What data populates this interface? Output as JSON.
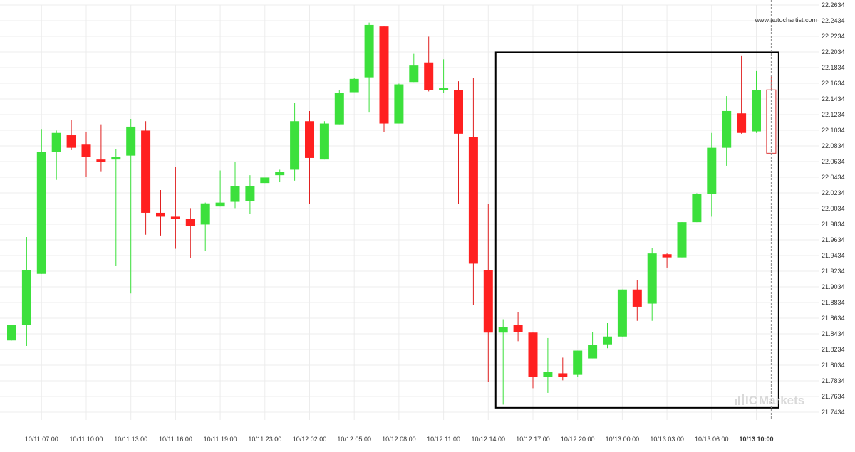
{
  "watermark": "www.autochartist.com",
  "brand": {
    "logo_prefix": "IC",
    "logo_word": "Markets"
  },
  "colors": {
    "up": "#3ce03c",
    "down": "#ff2020",
    "wick_up": "#3ce03c",
    "wick_down": "#e02020",
    "grid": "#ececec",
    "box": "#000000",
    "forming": "#dd3333"
  },
  "chart_data": {
    "type": "candlestick",
    "title": "",
    "xlabel": "",
    "ylabel": "",
    "ylim": [
      21.7334,
      22.2634
    ],
    "grid": true,
    "yticks": [
      "22.2634",
      "22.2434",
      "22.2234",
      "22.2034",
      "22.1834",
      "22.1634",
      "22.1434",
      "22.1234",
      "22.1034",
      "22.0834",
      "22.0634",
      "22.0434",
      "22.0234",
      "22.0034",
      "21.9834",
      "21.9634",
      "21.9434",
      "21.9234",
      "21.9034",
      "21.8834",
      "21.8634",
      "21.8434",
      "21.8234",
      "21.8034",
      "21.7834",
      "21.7634",
      "21.7434"
    ],
    "xticks": [
      {
        "label": "10/11 07:00",
        "index": 2,
        "bold": false
      },
      {
        "label": "10/11 10:00",
        "index": 5,
        "bold": false
      },
      {
        "label": "10/11 13:00",
        "index": 8,
        "bold": false
      },
      {
        "label": "10/11 16:00",
        "index": 11,
        "bold": false
      },
      {
        "label": "10/11 19:00",
        "index": 14,
        "bold": false
      },
      {
        "label": "10/11 23:00",
        "index": 17,
        "bold": false
      },
      {
        "label": "10/12 02:00",
        "index": 20,
        "bold": false
      },
      {
        "label": "10/12 05:00",
        "index": 23,
        "bold": false
      },
      {
        "label": "10/12 08:00",
        "index": 26,
        "bold": false
      },
      {
        "label": "10/12 11:00",
        "index": 29,
        "bold": false
      },
      {
        "label": "10/12 14:00",
        "index": 32,
        "bold": false
      },
      {
        "label": "10/12 17:00",
        "index": 35,
        "bold": false
      },
      {
        "label": "10/12 20:00",
        "index": 38,
        "bold": false
      },
      {
        "label": "10/13 00:00",
        "index": 41,
        "bold": false
      },
      {
        "label": "10/13 03:00",
        "index": 44,
        "bold": false
      },
      {
        "label": "10/13 06:00",
        "index": 47,
        "bold": false
      },
      {
        "label": "10/13 10:00",
        "index": 50,
        "bold": true
      }
    ],
    "candles": [
      {
        "o": 21.835,
        "h": 21.855,
        "l": 21.835,
        "c": 21.855
      },
      {
        "o": 21.855,
        "h": 21.967,
        "l": 21.828,
        "c": 21.925
      },
      {
        "o": 21.92,
        "h": 22.105,
        "l": 21.92,
        "c": 22.076
      },
      {
        "o": 22.076,
        "h": 22.103,
        "l": 22.04,
        "c": 22.1
      },
      {
        "o": 22.097,
        "h": 22.117,
        "l": 22.078,
        "c": 22.081
      },
      {
        "o": 22.085,
        "h": 22.101,
        "l": 22.044,
        "c": 22.069
      },
      {
        "o": 22.066,
        "h": 22.111,
        "l": 22.051,
        "c": 22.063
      },
      {
        "o": 22.066,
        "h": 22.079,
        "l": 21.93,
        "c": 22.069
      },
      {
        "o": 22.071,
        "h": 22.118,
        "l": 21.895,
        "c": 22.108
      },
      {
        "o": 22.103,
        "h": 22.115,
        "l": 21.97,
        "c": 21.998
      },
      {
        "o": 21.998,
        "h": 22.027,
        "l": 21.969,
        "c": 21.993
      },
      {
        "o": 21.993,
        "h": 22.057,
        "l": 21.952,
        "c": 21.99
      },
      {
        "o": 21.99,
        "h": 22.004,
        "l": 21.94,
        "c": 21.981
      },
      {
        "o": 21.983,
        "h": 22.011,
        "l": 21.949,
        "c": 22.01
      },
      {
        "o": 22.006,
        "h": 22.052,
        "l": 22.006,
        "c": 22.011
      },
      {
        "o": 22.012,
        "h": 22.063,
        "l": 22.004,
        "c": 22.032
      },
      {
        "o": 22.013,
        "h": 22.046,
        "l": 21.997,
        "c": 22.032
      },
      {
        "o": 22.036,
        "h": 22.043,
        "l": 22.036,
        "c": 22.043
      },
      {
        "o": 22.046,
        "h": 22.053,
        "l": 22.037,
        "c": 22.05
      },
      {
        "o": 22.053,
        "h": 22.138,
        "l": 22.039,
        "c": 22.115
      },
      {
        "o": 22.115,
        "h": 22.128,
        "l": 22.009,
        "c": 22.068
      },
      {
        "o": 22.066,
        "h": 22.115,
        "l": 22.066,
        "c": 22.112
      },
      {
        "o": 22.111,
        "h": 22.155,
        "l": 22.111,
        "c": 22.151
      },
      {
        "o": 22.152,
        "h": 22.17,
        "l": 22.152,
        "c": 22.169
      },
      {
        "o": 22.171,
        "h": 22.241,
        "l": 22.126,
        "c": 22.238
      },
      {
        "o": 22.236,
        "h": 22.236,
        "l": 22.101,
        "c": 22.112
      },
      {
        "o": 22.112,
        "h": 22.163,
        "l": 22.112,
        "c": 22.162
      },
      {
        "o": 22.165,
        "h": 22.201,
        "l": 22.165,
        "c": 22.186
      },
      {
        "o": 22.19,
        "h": 22.223,
        "l": 22.153,
        "c": 22.155
      },
      {
        "o": 22.156,
        "h": 22.194,
        "l": 22.151,
        "c": 22.157
      },
      {
        "o": 22.155,
        "h": 22.166,
        "l": 22.009,
        "c": 22.099
      },
      {
        "o": 22.095,
        "h": 22.17,
        "l": 21.88,
        "c": 21.933
      },
      {
        "o": 21.925,
        "h": 22.009,
        "l": 21.782,
        "c": 21.845
      },
      {
        "o": 21.845,
        "h": 21.862,
        "l": 21.753,
        "c": 21.852
      },
      {
        "o": 21.855,
        "h": 21.871,
        "l": 21.834,
        "c": 21.846
      },
      {
        "o": 21.845,
        "h": 21.845,
        "l": 21.774,
        "c": 21.788
      },
      {
        "o": 21.788,
        "h": 21.838,
        "l": 21.768,
        "c": 21.795
      },
      {
        "o": 21.793,
        "h": 21.813,
        "l": 21.784,
        "c": 21.788
      },
      {
        "o": 21.791,
        "h": 21.822,
        "l": 21.788,
        "c": 21.822
      },
      {
        "o": 21.812,
        "h": 21.846,
        "l": 21.812,
        "c": 21.829
      },
      {
        "o": 21.83,
        "h": 21.857,
        "l": 21.825,
        "c": 21.84
      },
      {
        "o": 21.84,
        "h": 21.9,
        "l": 21.84,
        "c": 21.9
      },
      {
        "o": 21.9,
        "h": 21.912,
        "l": 21.86,
        "c": 21.878
      },
      {
        "o": 21.882,
        "h": 21.953,
        "l": 21.86,
        "c": 21.946
      },
      {
        "o": 21.945,
        "h": 21.946,
        "l": 21.928,
        "c": 21.941
      },
      {
        "o": 21.941,
        "h": 21.986,
        "l": 21.941,
        "c": 21.986
      },
      {
        "o": 21.986,
        "h": 22.023,
        "l": 21.986,
        "c": 22.022
      },
      {
        "o": 22.022,
        "h": 22.1,
        "l": 21.993,
        "c": 22.081
      },
      {
        "o": 22.081,
        "h": 22.147,
        "l": 22.058,
        "c": 22.128
      },
      {
        "o": 22.125,
        "h": 22.199,
        "l": 22.099,
        "c": 22.1
      },
      {
        "o": 22.102,
        "h": 22.179,
        "l": 22.1,
        "c": 22.155
      }
    ],
    "forming_candle": {
      "o": 22.155,
      "h": 22.172,
      "l": 22.074,
      "c": 22.074
    },
    "highlight_box": {
      "start_index": 32.5,
      "end_index": 51.5,
      "top": 22.203,
      "bottom": 21.749
    },
    "current_time_index": 51
  }
}
